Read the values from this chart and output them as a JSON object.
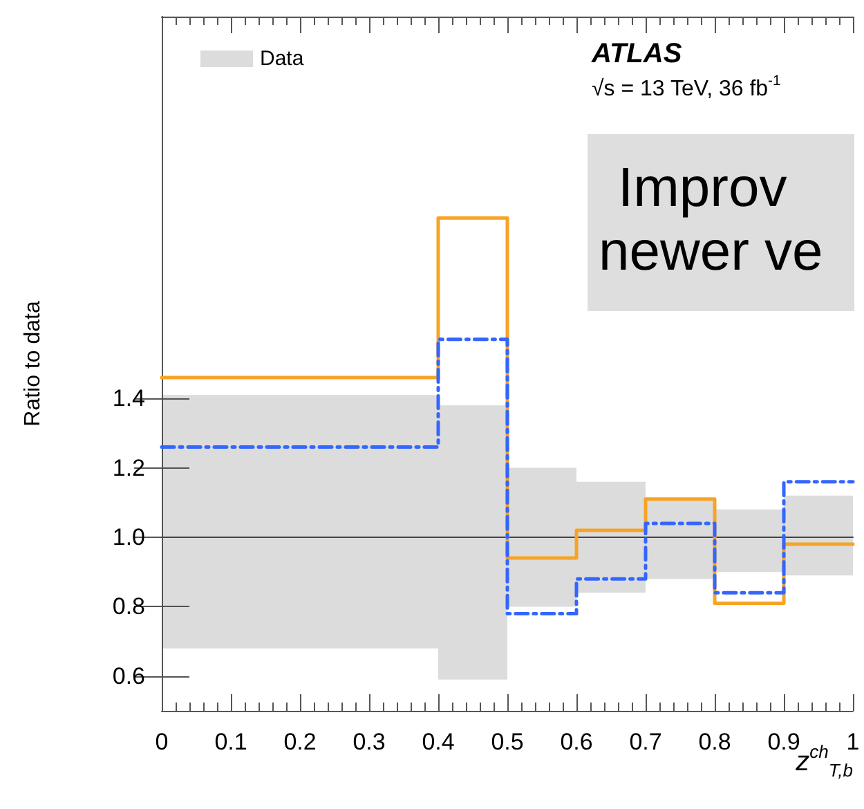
{
  "chart_data": {
    "type": "step",
    "xlabel": "z$^{ch}$$_{T,b}$",
    "ylabel": "Ratio to data",
    "annotations": [
      "ATLAS",
      "√s = 13 TeV, 36 fb$^{-1}$",
      "Improv",
      "newer ve"
    ],
    "x": [
      0,
      0.4,
      0.5,
      0.6,
      0.7,
      0.8,
      0.9,
      1
    ],
    "xlim": [
      0,
      1
    ],
    "xticks": [
      0,
      0.1,
      0.2,
      0.3,
      0.4,
      0.5,
      0.6,
      0.7,
      0.8,
      0.9,
      1
    ],
    "ylim": [
      0.5,
      2.5
    ],
    "yticks": [
      0.6,
      0.8,
      {
        "value": 1,
        "label": "1.0"
      },
      1.2,
      1.4
    ],
    "legend": "top left",
    "marker": "none",
    "grid": false,
    "series": [
      {
        "name": "Data",
        "color": "#444444",
        "line_style": "solid",
        "values": [
          1,
          1,
          1,
          1,
          1,
          1,
          1,
          1
        ],
        "lower": [
          0.68,
          0.59,
          0.8,
          0.84,
          0.88,
          0.9,
          0.89,
          0.89
        ],
        "upper": [
          1.41,
          1.38,
          1.2,
          1.16,
          1.11,
          1.08,
          1.12,
          1.12
        ]
      },
      {
        "color": "#f7a325",
        "line_style": "solid",
        "values": [
          1.46,
          1.92,
          0.94,
          1.02,
          1.11,
          0.81,
          0.98,
          0.98
        ]
      },
      {
        "color": "#3366ff",
        "line_style": "dashed",
        "values": [
          1.26,
          1.57,
          0.78,
          0.88,
          1.04,
          0.84,
          1.16,
          1.16
        ]
      }
    ]
  }
}
